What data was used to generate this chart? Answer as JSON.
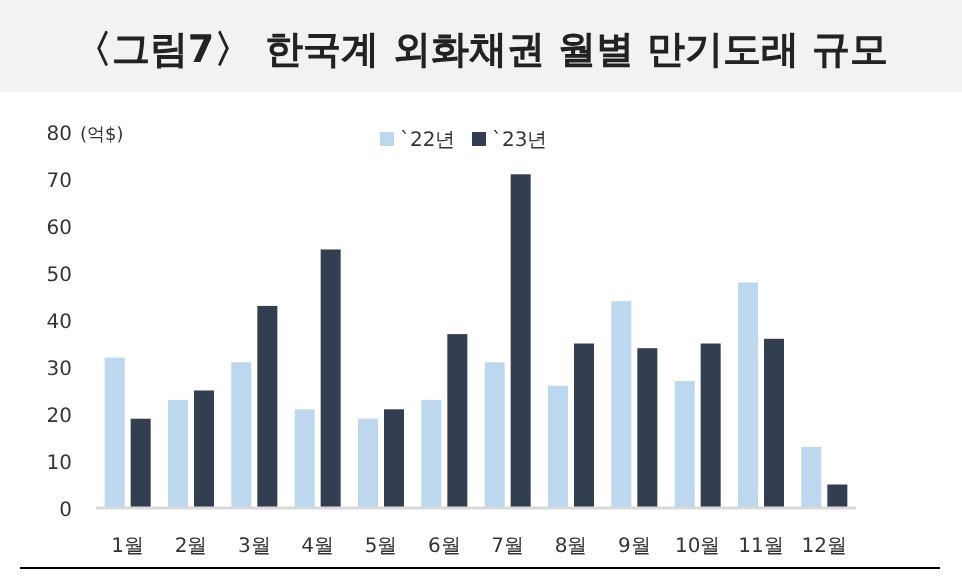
{
  "chart_data": {
    "type": "bar",
    "title": "〈그림7〉 한국계 외화채권 월별 만기도래 규모",
    "ylabel": "(억$)",
    "categories": [
      "1월",
      "2월",
      "3월",
      "4월",
      "5월",
      "6월",
      "7월",
      "8월",
      "9월",
      "10월",
      "11월",
      "12월"
    ],
    "series": [
      {
        "name": "`22년",
        "color": "#bdd7ee",
        "values": [
          32,
          23,
          31,
          21,
          19,
          23,
          31,
          26,
          44,
          27,
          48,
          13
        ]
      },
      {
        "name": "`23년",
        "color": "#333f50",
        "values": [
          19,
          25,
          43,
          55,
          21,
          37,
          71,
          35,
          34,
          35,
          36,
          5
        ]
      }
    ],
    "ylim": [
      0,
      80
    ],
    "yticks": [
      0,
      10,
      20,
      30,
      40,
      50,
      60,
      70,
      80
    ],
    "grid": false,
    "legend": "top"
  }
}
